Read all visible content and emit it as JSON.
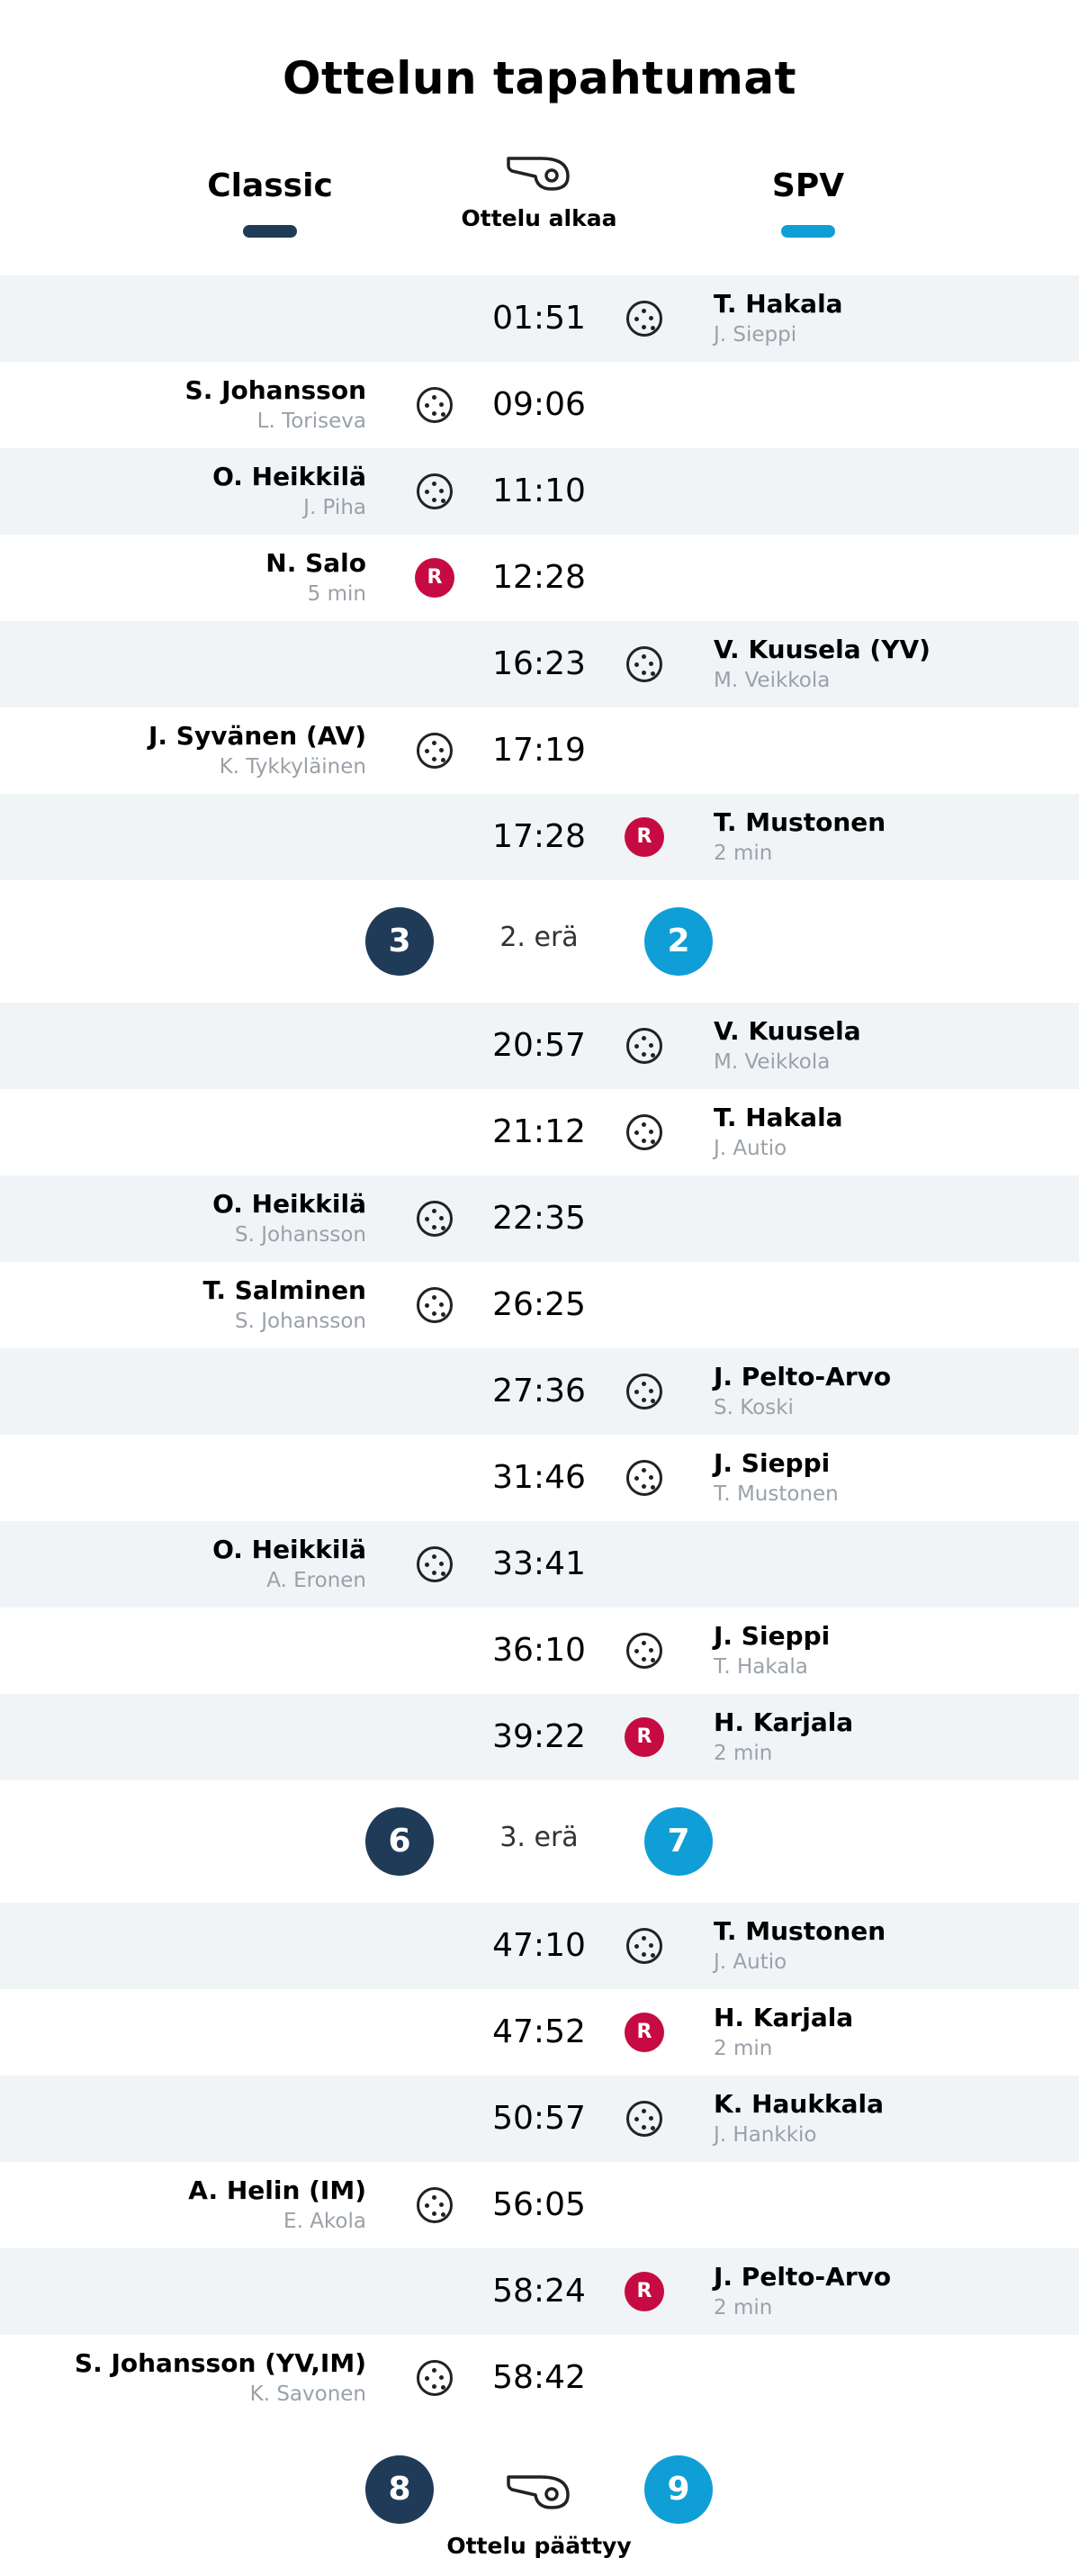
{
  "title": "Ottelun tapahtumat",
  "teams": {
    "home": {
      "name": "Classic",
      "color": "#1f3b57"
    },
    "away": {
      "name": "SPV",
      "color": "#0f9fd6"
    }
  },
  "start_label": "Ottelu alkaa",
  "end_label": "Ottelu päättyy",
  "final_score": {
    "home": "8",
    "away": "9"
  },
  "events": [
    {
      "time": "01:51",
      "side": "away",
      "type": "goal",
      "player": "T. Hakala",
      "sub": "J. Sieppi"
    },
    {
      "time": "09:06",
      "side": "home",
      "type": "goal",
      "player": "S. Johansson",
      "sub": "L. Toriseva"
    },
    {
      "time": "11:10",
      "side": "home",
      "type": "goal",
      "player": "O. Heikkilä",
      "sub": "J. Piha"
    },
    {
      "time": "12:28",
      "side": "home",
      "type": "penalty",
      "player": "N. Salo",
      "sub": "5 min"
    },
    {
      "time": "16:23",
      "side": "away",
      "type": "goal",
      "player": "V. Kuusela (YV)",
      "sub": "M. Veikkola"
    },
    {
      "time": "17:19",
      "side": "home",
      "type": "goal",
      "player": "J. Syvänen (AV)",
      "sub": "K. Tykkyläinen"
    },
    {
      "time": "17:28",
      "side": "away",
      "type": "penalty",
      "player": "T. Mustonen",
      "sub": "2 min"
    },
    {
      "period": true,
      "label": "2. erä",
      "home": "3",
      "away": "2"
    },
    {
      "time": "20:57",
      "side": "away",
      "type": "goal",
      "player": "V. Kuusela",
      "sub": "M. Veikkola"
    },
    {
      "time": "21:12",
      "side": "away",
      "type": "goal",
      "player": "T. Hakala",
      "sub": "J. Autio"
    },
    {
      "time": "22:35",
      "side": "home",
      "type": "goal",
      "player": "O. Heikkilä",
      "sub": "S. Johansson"
    },
    {
      "time": "26:25",
      "side": "home",
      "type": "goal",
      "player": "T. Salminen",
      "sub": "S. Johansson"
    },
    {
      "time": "27:36",
      "side": "away",
      "type": "goal",
      "player": "J. Pelto-Arvo",
      "sub": "S. Koski"
    },
    {
      "time": "31:46",
      "side": "away",
      "type": "goal",
      "player": "J. Sieppi",
      "sub": "T. Mustonen"
    },
    {
      "time": "33:41",
      "side": "home",
      "type": "goal",
      "player": "O. Heikkilä",
      "sub": "A. Eronen"
    },
    {
      "time": "36:10",
      "side": "away",
      "type": "goal",
      "player": "J. Sieppi",
      "sub": "T. Hakala"
    },
    {
      "time": "39:22",
      "side": "away",
      "type": "penalty",
      "player": "H. Karjala",
      "sub": "2 min"
    },
    {
      "period": true,
      "label": "3. erä",
      "home": "6",
      "away": "7"
    },
    {
      "time": "47:10",
      "side": "away",
      "type": "goal",
      "player": "T. Mustonen",
      "sub": "J. Autio"
    },
    {
      "time": "47:52",
      "side": "away",
      "type": "penalty",
      "player": "H. Karjala",
      "sub": "2 min"
    },
    {
      "time": "50:57",
      "side": "away",
      "type": "goal",
      "player": "K. Haukkala",
      "sub": "J. Hankkio"
    },
    {
      "time": "56:05",
      "side": "home",
      "type": "goal",
      "player": "A. Helin (IM)",
      "sub": "E. Akola"
    },
    {
      "time": "58:24",
      "side": "away",
      "type": "penalty",
      "player": "J. Pelto-Arvo",
      "sub": "2 min"
    },
    {
      "time": "58:42",
      "side": "home",
      "type": "goal",
      "player": "S. Johansson (YV,IM)",
      "sub": "K. Savonen"
    }
  ],
  "icons": {
    "goal": "floorball-icon",
    "penalty": "penalty-icon",
    "whistle": "whistle-icon"
  },
  "penalty_letter": "R"
}
